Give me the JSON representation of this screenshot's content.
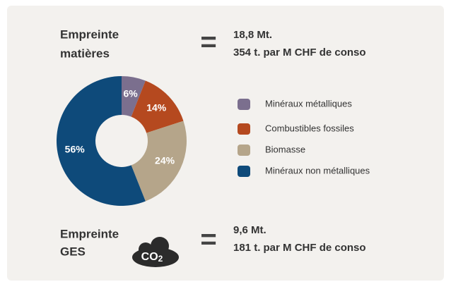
{
  "chart_data": {
    "type": "donut",
    "categories": [
      "Minéraux métalliques",
      "Combustibles fossiles",
      "Biomasse",
      "Minéraux non métalliques"
    ],
    "values": [
      6,
      14,
      24,
      56
    ],
    "value_labels": [
      "6%",
      "14%",
      "24%",
      "56%"
    ],
    "colors": [
      "#7b6f8e",
      "#b5491f",
      "#b5a58a",
      "#0e4a7a"
    ],
    "legend": "right"
  },
  "footprints": [
    {
      "title": [
        "Empreinte",
        "matières"
      ],
      "symbol": "=",
      "lines": [
        "18,8 Mt.",
        "354 t. par M CHF de conso"
      ]
    },
    {
      "title": [
        "Empreinte",
        "GES"
      ],
      "symbol": "=",
      "lines": [
        "9,6 Mt.",
        "181 t. par M CHF de conso"
      ],
      "badge": [
        "CO",
        "2"
      ]
    }
  ]
}
